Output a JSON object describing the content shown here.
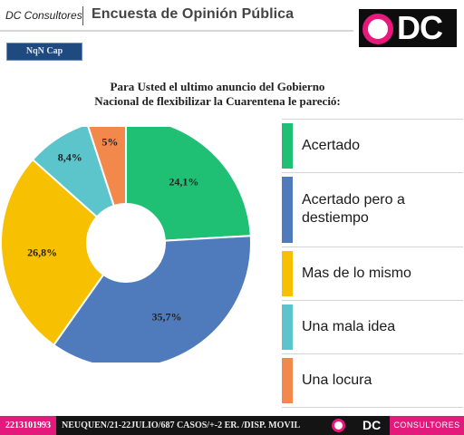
{
  "header": {
    "brand": "DC Consultores",
    "survey_title": "Encuesta de Opinión Pública",
    "logo_text": "DC"
  },
  "section_tag": "NqN Cap",
  "chart_data": {
    "type": "pie",
    "title_lines": [
      "Para Usted el ultimo anuncio del Gobierno",
      "Nacional de flexibilizar la Cuarentena  le pareció:"
    ],
    "categories": [
      "Acertado",
      "Acertado pero a destiempo",
      "Mas de lo mismo",
      "Una mala idea",
      "Una locura"
    ],
    "values": [
      24.1,
      35.7,
      26.8,
      8.4,
      5
    ],
    "value_labels": [
      "24,1%",
      "35,7%",
      "26,8%",
      "8,4%",
      "5%"
    ],
    "colors": [
      "#1fbf74",
      "#4f7bbd",
      "#f7c000",
      "#5bc5cb",
      "#f2884c"
    ],
    "legend_position": "right",
    "donut": true
  },
  "footer": {
    "phone": "2213101993",
    "info": "NEUQUEN/21-22JULIO/687 CASOS/+-2 ER. /DISP. MOVIL",
    "brand": "DC",
    "consult": "CONSULTORES"
  }
}
